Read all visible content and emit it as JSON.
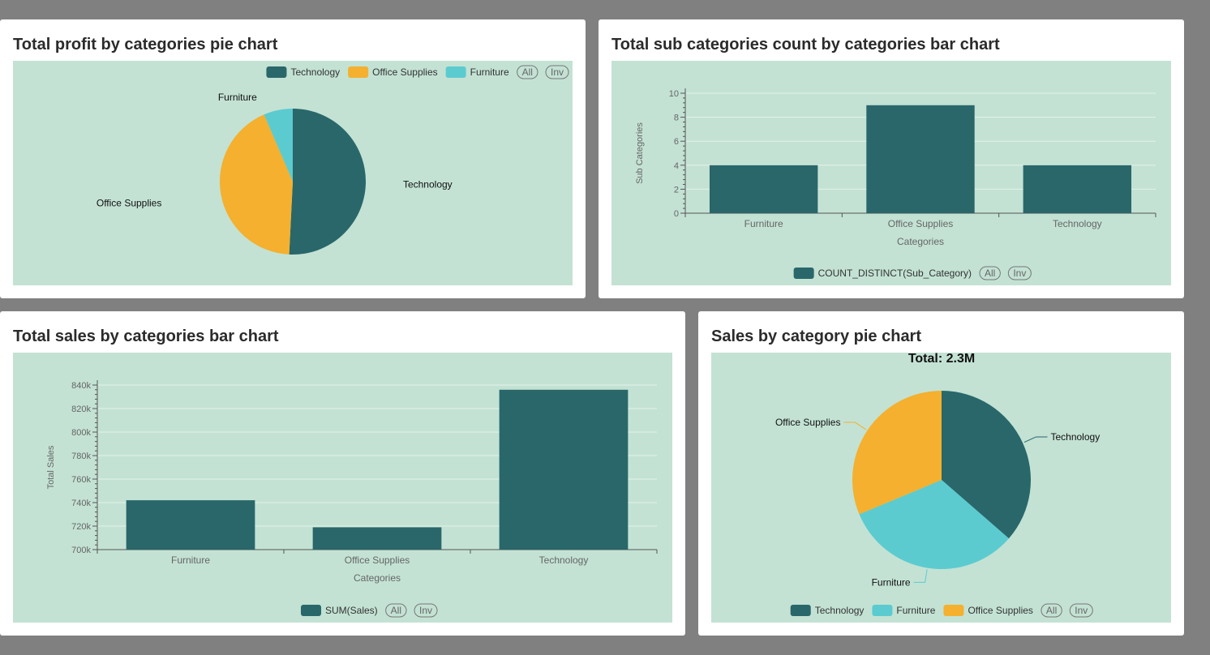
{
  "colors": {
    "technology": "#29676a",
    "office_supplies": "#f4b02e",
    "furniture": "#5bcbd0",
    "plot_bg": "#c3e2d4",
    "axis": "#555555",
    "gridline": "#e4f1ea",
    "label": "#666666"
  },
  "legend_controls": {
    "all": "All",
    "inv": "Inv"
  },
  "chart_data": [
    {
      "id": "profit_pie",
      "type": "pie",
      "title": "Total profit by categories pie chart",
      "legend_placement": "top-right",
      "slices": [
        {
          "label": "Technology",
          "value": 145455,
          "color": "#29676a"
        },
        {
          "label": "Office Supplies",
          "value": 122491,
          "color": "#f4b02e"
        },
        {
          "label": "Furniture",
          "value": 18451,
          "color": "#5bcbd0"
        }
      ]
    },
    {
      "id": "subcat_bar",
      "type": "bar",
      "title": "Total sub categories count by categories bar chart",
      "categories": [
        "Furniture",
        "Office Supplies",
        "Technology"
      ],
      "series": [
        {
          "name": "COUNT_DISTINCT(Sub_Category)",
          "values": [
            4,
            9,
            4
          ]
        }
      ],
      "xlabel": "Categories",
      "ylabel": "Sub Categories",
      "ylim": [
        0,
        10
      ],
      "yticks": [
        "0",
        "2",
        "4",
        "6",
        "8",
        "10"
      ],
      "grid": true,
      "legend_placement": "bottom-center"
    },
    {
      "id": "sales_bar",
      "type": "bar",
      "title": "Total sales by categories bar chart",
      "categories": [
        "Furniture",
        "Office Supplies",
        "Technology"
      ],
      "series": [
        {
          "name": "SUM(Sales)",
          "values": [
            742000,
            719000,
            836000
          ]
        }
      ],
      "xlabel": "Categories",
      "ylabel": "Total Sales",
      "ylim": [
        700000,
        840000
      ],
      "yticks": [
        "700k",
        "720k",
        "740k",
        "760k",
        "780k",
        "800k",
        "820k",
        "840k"
      ],
      "grid": true,
      "legend_placement": "bottom-center"
    },
    {
      "id": "sales_pie",
      "type": "pie",
      "title": "Sales by category pie chart",
      "total_label": "Total: 2.3M",
      "legend_placement": "bottom-center",
      "slices": [
        {
          "label": "Technology",
          "value": 836000,
          "color": "#29676a"
        },
        {
          "label": "Furniture",
          "value": 742000,
          "color": "#5bcbd0"
        },
        {
          "label": "Office Supplies",
          "value": 719000,
          "color": "#f4b02e"
        }
      ]
    }
  ]
}
